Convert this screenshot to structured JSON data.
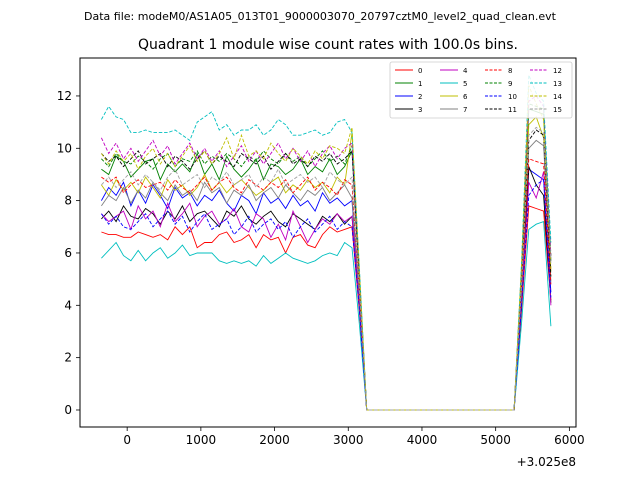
{
  "figure": {
    "suptitle": "Data file: modeM0/AS1A05_013T01_9000003070_20797cztM0_level2_quad_clean.evt"
  },
  "chart_data": {
    "type": "line",
    "title": "Quadrant 1 module wise count rates with 100.0s bins.",
    "xlabel": "",
    "ylabel": "",
    "x_offset_label": "+3.025e8",
    "xlim": [
      -640,
      6090
    ],
    "ylim": [
      -0.65,
      13.45
    ],
    "xticks": [
      0,
      1000,
      2000,
      3000,
      4000,
      5000,
      6000
    ],
    "xtick_labels": [
      "0",
      "1000",
      "2000",
      "3000",
      "4000",
      "5000",
      "6000"
    ],
    "yticks": [
      0,
      2,
      4,
      6,
      8,
      10,
      12
    ],
    "ytick_labels": [
      "0",
      "2",
      "4",
      "6",
      "8",
      "10",
      "12"
    ],
    "grid": false,
    "legend_position": "top-right",
    "x": [
      -350,
      -250,
      -150,
      -50,
      50,
      150,
      250,
      350,
      450,
      550,
      650,
      750,
      850,
      950,
      1050,
      1150,
      1250,
      1350,
      1450,
      1550,
      1650,
      1750,
      1850,
      1950,
      2050,
      2150,
      2250,
      2350,
      2450,
      2550,
      2650,
      2750,
      2850,
      2950,
      3050,
      3150,
      3250,
      3350,
      3450,
      3550,
      3650,
      3750,
      3850,
      3950,
      4050,
      4150,
      4250,
      4350,
      4450,
      4550,
      4650,
      4750,
      4850,
      4950,
      5050,
      5150,
      5250,
      5350,
      5450,
      5550,
      5650,
      5750
    ],
    "series": [
      {
        "name": "0",
        "color": "#ff0000",
        "dash": "solid",
        "values": [
          6.8,
          6.7,
          6.7,
          6.6,
          6.6,
          6.8,
          6.7,
          6.6,
          6.7,
          6.5,
          7.0,
          6.7,
          7.0,
          6.2,
          6.4,
          6.4,
          6.7,
          6.8,
          6.4,
          6.5,
          6.7,
          6.2,
          6.7,
          6.5,
          6.6,
          6.0,
          6.6,
          6.7,
          6.3,
          6.2,
          6.7,
          7.0,
          6.8,
          6.9,
          7.0,
          3.8,
          0.0,
          0.0,
          0.0,
          0.0,
          0.0,
          0.0,
          0.0,
          0.0,
          0.0,
          0.0,
          0.0,
          0.0,
          0.0,
          0.0,
          0.0,
          0.0,
          0.0,
          0.0,
          0.0,
          0.0,
          0.0,
          3.8,
          7.8,
          7.7,
          7.6,
          4.2
        ]
      },
      {
        "name": "1",
        "color": "#008000",
        "dash": "solid",
        "values": [
          9.2,
          9.0,
          9.7,
          9.5,
          8.9,
          9.2,
          9.5,
          9.6,
          8.8,
          9.4,
          9.1,
          9.4,
          9.1,
          9.8,
          9.0,
          9.4,
          8.8,
          9.7,
          9.2,
          8.9,
          9.2,
          9.6,
          8.8,
          9.4,
          9.3,
          9.0,
          9.2,
          9.6,
          9.0,
          9.3,
          9.1,
          9.6,
          9.0,
          9.3,
          9.9,
          5.1,
          0.0,
          0.0,
          0.0,
          0.0,
          0.0,
          0.0,
          0.0,
          0.0,
          0.0,
          0.0,
          0.0,
          0.0,
          0.0,
          0.0,
          0.0,
          0.0,
          0.0,
          0.0,
          0.0,
          0.0,
          0.0,
          5.2,
          11.5,
          11.4,
          11.3,
          5.7
        ]
      },
      {
        "name": "2",
        "color": "#0000ff",
        "dash": "solid",
        "values": [
          8.0,
          8.5,
          8.2,
          8.7,
          7.8,
          8.4,
          7.9,
          8.6,
          8.2,
          7.7,
          8.5,
          8.1,
          8.3,
          7.8,
          8.2,
          8.0,
          8.4,
          7.9,
          7.6,
          8.2,
          8.0,
          7.5,
          8.3,
          7.9,
          8.1,
          7.7,
          8.2,
          7.8,
          8.0,
          7.6,
          8.3,
          7.9,
          8.1,
          7.8,
          8.0,
          4.3,
          0.0,
          0.0,
          0.0,
          0.0,
          0.0,
          0.0,
          0.0,
          0.0,
          0.0,
          0.0,
          0.0,
          0.0,
          0.0,
          0.0,
          0.0,
          0.0,
          0.0,
          0.0,
          0.0,
          0.0,
          0.0,
          4.4,
          9.2,
          9.0,
          8.8,
          4.5
        ]
      },
      {
        "name": "3",
        "color": "#000000",
        "dash": "solid",
        "values": [
          7.3,
          7.6,
          7.2,
          7.8,
          7.4,
          7.3,
          7.7,
          7.5,
          7.1,
          7.6,
          7.3,
          7.8,
          7.2,
          7.5,
          7.6,
          7.3,
          7.0,
          7.6,
          7.4,
          7.8,
          7.3,
          7.1,
          7.4,
          7.6,
          7.2,
          7.0,
          7.5,
          7.3,
          7.1,
          6.9,
          7.4,
          7.2,
          7.5,
          7.1,
          7.4,
          4.0,
          0.0,
          0.0,
          0.0,
          0.0,
          0.0,
          0.0,
          0.0,
          0.0,
          0.0,
          0.0,
          0.0,
          0.0,
          0.0,
          0.0,
          0.0,
          0.0,
          0.0,
          0.0,
          0.0,
          0.0,
          0.0,
          4.0,
          9.3,
          8.6,
          8.2,
          4.1
        ]
      },
      {
        "name": "4",
        "color": "#c000c0",
        "dash": "solid",
        "values": [
          7.5,
          7.2,
          7.4,
          7.6,
          6.9,
          7.8,
          7.3,
          7.6,
          7.0,
          7.9,
          7.2,
          7.5,
          7.9,
          7.0,
          7.4,
          7.6,
          7.1,
          7.3,
          7.7,
          7.0,
          6.8,
          7.5,
          7.3,
          6.6,
          7.1,
          6.5,
          7.6,
          7.0,
          6.4,
          6.9,
          7.3,
          7.1,
          7.5,
          7.2,
          7.4,
          4.0,
          0.0,
          0.0,
          0.0,
          0.0,
          0.0,
          0.0,
          0.0,
          0.0,
          0.0,
          0.0,
          0.0,
          0.0,
          0.0,
          0.0,
          0.0,
          0.0,
          0.0,
          0.0,
          0.0,
          0.0,
          0.0,
          4.1,
          8.7,
          8.1,
          9.1,
          4.0
        ]
      },
      {
        "name": "5",
        "color": "#00bfbf",
        "dash": "solid",
        "values": [
          5.8,
          6.1,
          6.4,
          5.9,
          5.7,
          6.1,
          5.7,
          6.0,
          6.2,
          5.8,
          6.0,
          6.3,
          5.9,
          6.0,
          6.0,
          6.0,
          5.7,
          5.6,
          5.7,
          5.6,
          5.7,
          5.5,
          5.9,
          5.6,
          5.8,
          6.0,
          5.8,
          5.7,
          5.6,
          5.7,
          5.9,
          6.0,
          5.9,
          6.4,
          6.2,
          3.3,
          0.0,
          0.0,
          0.0,
          0.0,
          0.0,
          0.0,
          0.0,
          0.0,
          0.0,
          0.0,
          0.0,
          0.0,
          0.0,
          0.0,
          0.0,
          0.0,
          0.0,
          0.0,
          0.0,
          0.0,
          0.0,
          3.3,
          6.9,
          7.1,
          7.2,
          3.2
        ]
      },
      {
        "name": "6",
        "color": "#bfbf00",
        "dash": "solid",
        "values": [
          8.6,
          8.2,
          8.8,
          8.4,
          8.7,
          8.3,
          8.9,
          8.5,
          8.1,
          8.8,
          8.4,
          8.6,
          8.2,
          8.5,
          9.0,
          8.4,
          8.7,
          8.3,
          8.6,
          8.8,
          8.5,
          8.2,
          8.4,
          8.7,
          8.9,
          8.3,
          8.6,
          8.4,
          8.8,
          8.5,
          8.7,
          8.3,
          8.9,
          8.6,
          10.6,
          5.0,
          0.0,
          0.0,
          0.0,
          0.0,
          0.0,
          0.0,
          0.0,
          0.0,
          0.0,
          0.0,
          0.0,
          0.0,
          0.0,
          0.0,
          0.0,
          0.0,
          0.0,
          0.0,
          0.0,
          0.0,
          0.0,
          5.1,
          10.9,
          11.2,
          10.4,
          5.3
        ]
      },
      {
        "name": "7",
        "color": "#808080",
        "dash": "solid",
        "values": [
          7.8,
          8.2,
          8.0,
          8.5,
          7.9,
          8.4,
          8.1,
          8.7,
          8.3,
          8.0,
          8.6,
          8.2,
          8.4,
          8.0,
          8.7,
          8.3,
          8.5,
          7.9,
          8.4,
          8.2,
          8.6,
          8.0,
          8.3,
          8.5,
          8.1,
          8.6,
          8.3,
          8.0,
          8.4,
          8.2,
          8.5,
          8.0,
          8.3,
          8.6,
          8.1,
          4.4,
          0.0,
          0.0,
          0.0,
          0.0,
          0.0,
          0.0,
          0.0,
          0.0,
          0.0,
          0.0,
          0.0,
          0.0,
          0.0,
          0.0,
          0.0,
          0.0,
          0.0,
          0.0,
          0.0,
          0.0,
          0.0,
          4.5,
          10.0,
          10.3,
          10.1,
          4.9
        ]
      },
      {
        "name": "8",
        "color": "#ff0000",
        "dash": "dashed",
        "values": [
          8.9,
          8.7,
          8.9,
          8.3,
          8.6,
          8.8,
          8.5,
          8.6,
          8.7,
          8.4,
          8.8,
          8.5,
          8.3,
          8.6,
          8.9,
          8.4,
          8.7,
          8.9,
          8.5,
          8.3,
          8.8,
          8.6,
          8.4,
          8.7,
          8.5,
          8.8,
          8.3,
          8.6,
          8.9,
          8.4,
          8.7,
          8.5,
          8.2,
          8.8,
          8.6,
          4.6,
          0.0,
          0.0,
          0.0,
          0.0,
          0.0,
          0.0,
          0.0,
          0.0,
          0.0,
          0.0,
          0.0,
          0.0,
          0.0,
          0.0,
          0.0,
          0.0,
          0.0,
          0.0,
          0.0,
          0.0,
          0.0,
          4.7,
          9.6,
          9.5,
          9.4,
          4.8
        ]
      },
      {
        "name": "9",
        "color": "#008000",
        "dash": "dashed",
        "values": [
          9.6,
          9.3,
          9.8,
          9.5,
          9.4,
          9.7,
          9.5,
          9.2,
          9.6,
          9.8,
          9.3,
          9.6,
          9.5,
          9.9,
          9.4,
          9.7,
          9.5,
          9.8,
          9.6,
          9.3,
          9.7,
          9.5,
          9.9,
          9.6,
          9.4,
          9.8,
          9.5,
          9.7,
          9.3,
          9.6,
          9.9,
          9.5,
          9.7,
          9.4,
          10.1,
          5.2,
          0.0,
          0.0,
          0.0,
          0.0,
          0.0,
          0.0,
          0.0,
          0.0,
          0.0,
          0.0,
          0.0,
          0.0,
          0.0,
          0.0,
          0.0,
          0.0,
          0.0,
          0.0,
          0.0,
          0.0,
          0.0,
          5.3,
          11.7,
          11.6,
          11.5,
          5.9
        ]
      },
      {
        "name": "10",
        "color": "#0000ff",
        "dash": "dashed",
        "values": [
          7.5,
          7.1,
          7.4,
          7.0,
          6.9,
          7.2,
          7.5,
          7.0,
          7.3,
          7.6,
          7.1,
          7.4,
          6.8,
          7.2,
          7.5,
          6.9,
          7.1,
          7.3,
          6.7,
          7.0,
          7.4,
          6.8,
          7.1,
          7.3,
          6.9,
          7.2,
          6.6,
          7.0,
          7.3,
          6.8,
          7.1,
          7.4,
          6.9,
          7.2,
          7.0,
          3.9,
          0.0,
          0.0,
          0.0,
          0.0,
          0.0,
          0.0,
          0.0,
          0.0,
          0.0,
          0.0,
          0.0,
          0.0,
          0.0,
          0.0,
          0.0,
          0.0,
          0.0,
          0.0,
          0.0,
          0.0,
          0.0,
          4.0,
          8.2,
          8.6,
          8.8,
          4.3
        ]
      },
      {
        "name": "11",
        "color": "#000000",
        "dash": "dashed",
        "values": [
          9.8,
          9.5,
          9.7,
          9.3,
          9.6,
          9.9,
          9.4,
          9.6,
          9.8,
          9.3,
          9.7,
          9.5,
          9.2,
          9.6,
          9.9,
          9.4,
          9.7,
          9.5,
          9.3,
          9.8,
          9.6,
          9.4,
          9.7,
          9.2,
          9.5,
          9.8,
          9.4,
          9.6,
          9.3,
          9.7,
          9.5,
          9.8,
          9.4,
          9.6,
          9.9,
          5.1,
          0.0,
          0.0,
          0.0,
          0.0,
          0.0,
          0.0,
          0.0,
          0.0,
          0.0,
          0.0,
          0.0,
          0.0,
          0.0,
          0.0,
          0.0,
          0.0,
          0.0,
          0.0,
          0.0,
          0.0,
          0.0,
          5.2,
          10.3,
          10.7,
          10.5,
          5.1
        ]
      },
      {
        "name": "12",
        "color": "#c000c0",
        "dash": "dashed",
        "values": [
          10.4,
          9.8,
          10.2,
          9.6,
          10.0,
          9.5,
          9.9,
          10.3,
          9.7,
          10.1,
          9.4,
          9.8,
          10.2,
          9.6,
          10.0,
          9.5,
          9.9,
          9.3,
          9.7,
          10.1,
          9.5,
          9.9,
          9.4,
          9.8,
          10.2,
          9.6,
          10.0,
          9.5,
          9.9,
          9.3,
          9.8,
          10.1,
          9.6,
          10.0,
          10.2,
          5.3,
          0.0,
          0.0,
          0.0,
          0.0,
          0.0,
          0.0,
          0.0,
          0.0,
          0.0,
          0.0,
          0.0,
          0.0,
          0.0,
          0.0,
          0.0,
          0.0,
          0.0,
          0.0,
          0.0,
          0.0,
          0.0,
          5.4,
          11.8,
          12.0,
          11.6,
          5.8
        ]
      },
      {
        "name": "13",
        "color": "#00bfbf",
        "dash": "dashed",
        "values": [
          11.1,
          11.6,
          11.2,
          11.1,
          10.6,
          10.6,
          10.7,
          10.6,
          10.6,
          10.6,
          10.7,
          10.5,
          10.3,
          11.0,
          11.2,
          11.4,
          10.7,
          10.9,
          10.5,
          10.7,
          10.7,
          10.9,
          10.5,
          10.7,
          11.1,
          10.9,
          10.5,
          10.5,
          10.6,
          10.7,
          10.5,
          10.6,
          11.0,
          11.1,
          10.6,
          5.5,
          0.0,
          0.0,
          0.0,
          0.0,
          0.0,
          0.0,
          0.0,
          0.0,
          0.0,
          0.0,
          0.0,
          0.0,
          0.0,
          0.0,
          0.0,
          0.0,
          0.0,
          0.0,
          0.0,
          0.0,
          0.0,
          5.6,
          12.8,
          12.1,
          11.8,
          6.4
        ]
      },
      {
        "name": "14",
        "color": "#bfbf00",
        "dash": "dashed",
        "values": [
          9.8,
          9.4,
          9.9,
          9.5,
          9.8,
          9.2,
          9.7,
          10.0,
          9.4,
          9.8,
          9.3,
          9.7,
          10.1,
          9.5,
          9.9,
          9.4,
          9.8,
          10.4,
          9.6,
          10.5,
          9.7,
          9.9,
          9.6,
          10.2,
          9.8,
          9.5,
          10.0,
          9.7,
          9.4,
          9.9,
          9.6,
          10.1,
          10.0,
          9.8,
          10.8,
          5.4,
          0.0,
          0.0,
          0.0,
          0.0,
          0.0,
          0.0,
          0.0,
          0.0,
          0.0,
          0.0,
          0.0,
          0.0,
          0.0,
          0.0,
          0.0,
          0.0,
          0.0,
          0.0,
          0.0,
          0.0,
          0.0,
          5.5,
          12.4,
          11.7,
          11.1,
          5.4
        ]
      },
      {
        "name": "15",
        "color": "#a0a0a0",
        "dash": "dashed",
        "values": [
          8.6,
          8.9,
          8.5,
          8.8,
          9.1,
          8.6,
          9.0,
          8.7,
          8.4,
          8.9,
          9.2,
          8.6,
          8.8,
          9.0,
          8.5,
          8.9,
          8.7,
          9.1,
          8.6,
          8.8,
          9.0,
          8.5,
          8.9,
          8.7,
          9.2,
          8.6,
          8.8,
          9.0,
          8.7,
          8.9,
          8.5,
          9.1,
          8.8,
          8.6,
          8.9,
          4.7,
          0.0,
          0.0,
          0.0,
          0.0,
          0.0,
          0.0,
          0.0,
          0.0,
          0.0,
          0.0,
          0.0,
          0.0,
          0.0,
          0.0,
          0.0,
          0.0,
          0.0,
          0.0,
          0.0,
          0.0,
          0.0,
          4.8,
          10.5,
          10.8,
          10.6,
          5.6
        ]
      }
    ]
  }
}
